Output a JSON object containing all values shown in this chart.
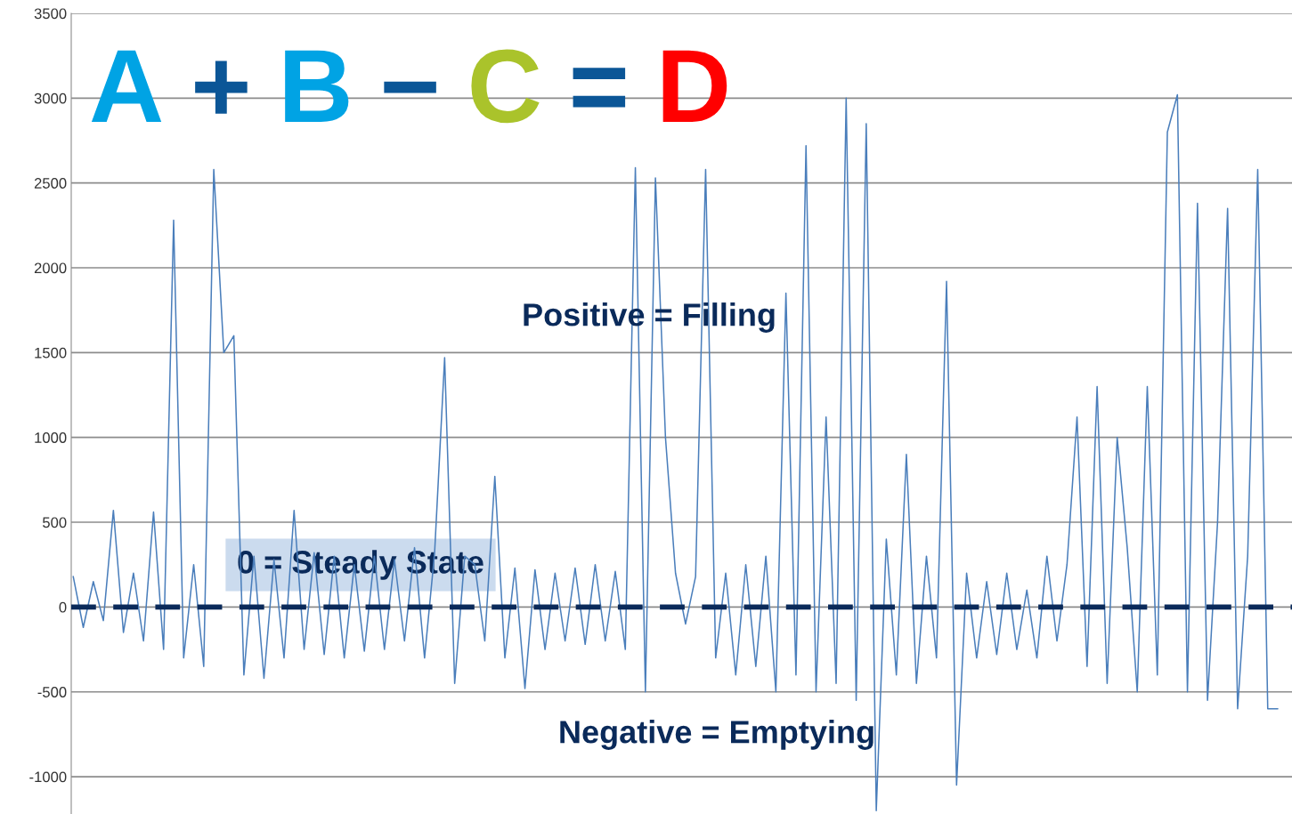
{
  "chart_data": {
    "type": "line",
    "title": "A + B − C = D",
    "categories": [
      null,
      null,
      null,
      null,
      null,
      null,
      null,
      null,
      null,
      null,
      null,
      null,
      null,
      null,
      null,
      null,
      null,
      null,
      null,
      null,
      null,
      null,
      null,
      null,
      null,
      null,
      null,
      null,
      null,
      null,
      null,
      null,
      null,
      null,
      null,
      null,
      null,
      null,
      null,
      null,
      null,
      null,
      null,
      null,
      null,
      null,
      null,
      null,
      null,
      null,
      null,
      null,
      null,
      null,
      null,
      null,
      null,
      null,
      null,
      null,
      null,
      null,
      null,
      null,
      null,
      null,
      null,
      null,
      null,
      null,
      null,
      null,
      null,
      null,
      null,
      null,
      null,
      null,
      null,
      null,
      null,
      null,
      null,
      null,
      null,
      null,
      null,
      null,
      null,
      null,
      null,
      null,
      null,
      null,
      null,
      null,
      null,
      null,
      null,
      null,
      null,
      null,
      null,
      null,
      null,
      null,
      null,
      null,
      null,
      null,
      null,
      null,
      null,
      null,
      null,
      null,
      null,
      null,
      null,
      null,
      null
    ],
    "series": [
      {
        "color": "#4a7ebb",
        "values": [
          180,
          -120,
          150,
          -80,
          570,
          -150,
          200,
          -200,
          560,
          -250,
          2280,
          -300,
          250,
          -350,
          2580,
          1500,
          1600,
          -400,
          300,
          -420,
          280,
          -300,
          570,
          -250,
          320,
          -280,
          300,
          -300,
          250,
          -260,
          300,
          -250,
          280,
          -200,
          350,
          -300,
          320,
          1470,
          -450,
          300,
          250,
          -200,
          770,
          -300,
          230,
          -480,
          220,
          -250,
          200,
          -200,
          230,
          -220,
          250,
          -200,
          210,
          -250,
          2590,
          -500,
          2530,
          1000,
          200,
          -100,
          180,
          2580,
          -300,
          200,
          -400,
          250,
          -350,
          300,
          -500,
          1850,
          -400,
          2720,
          -500,
          1120,
          -450,
          3000,
          -550,
          2850,
          -1200,
          400,
          -400,
          900,
          -450,
          300,
          -300,
          1920,
          -1050,
          200,
          -300,
          150,
          -280,
          200,
          -250,
          100,
          -300,
          300,
          -200,
          250,
          1120,
          -350,
          1300,
          -450,
          1000,
          350,
          -500,
          1300,
          -400,
          2800,
          3020,
          -500,
          2380,
          -550,
          500,
          2350,
          -600,
          300,
          2580,
          -600,
          -600
        ]
      }
    ],
    "ylim": [
      -1220,
      3500
    ],
    "yticks": [
      -1000,
      -500,
      0,
      500,
      1000,
      1500,
      2000,
      2500,
      3000,
      3500
    ],
    "grid": "y",
    "tick_labels": "y",
    "ref_lines": [
      {
        "axis": "y",
        "value": 0,
        "color": "#0a2a5a",
        "line_style": "dashed"
      }
    ],
    "annotations": [
      "Positive = Filling",
      "0 = Steady State",
      "Negative = Emptying"
    ]
  }
}
